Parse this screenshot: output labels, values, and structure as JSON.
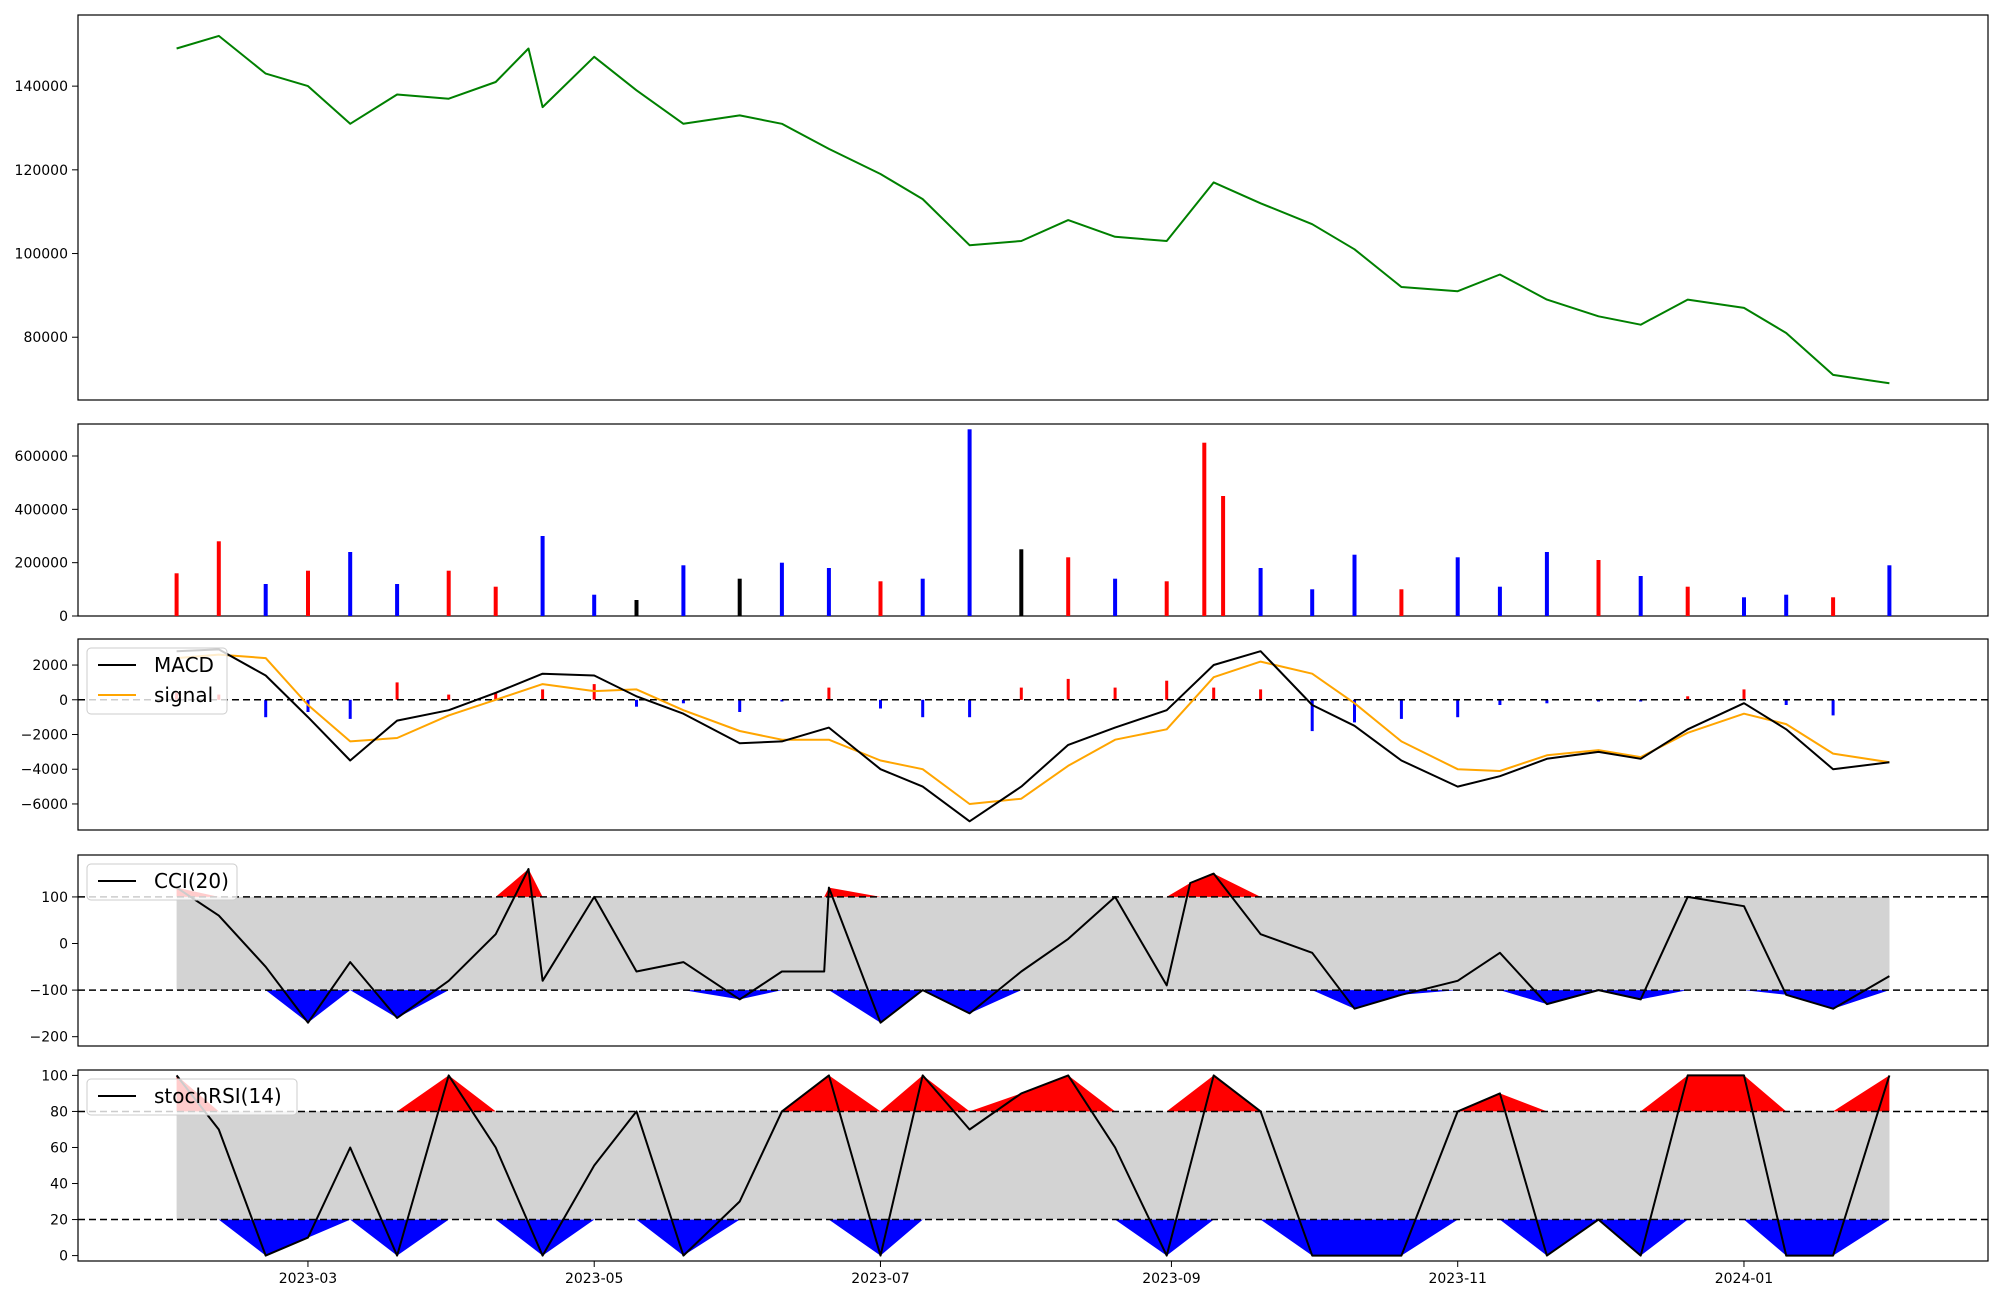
{
  "chart_data": [
    {
      "type": "line",
      "panel": "price",
      "color": "#008000",
      "ylim": [
        65000,
        157000
      ],
      "yticks": [
        80000,
        100000,
        120000,
        140000
      ],
      "x": [
        "2023-02-01",
        "2023-02-10",
        "2023-02-20",
        "2023-03-01",
        "2023-03-10",
        "2023-03-20",
        "2023-03-31",
        "2023-04-10",
        "2023-04-17",
        "2023-04-20",
        "2023-05-01",
        "2023-05-10",
        "2023-05-20",
        "2023-06-01",
        "2023-06-10",
        "2023-06-20",
        "2023-07-01",
        "2023-07-10",
        "2023-07-20",
        "2023-07-31",
        "2023-08-10",
        "2023-08-20",
        "2023-08-31",
        "2023-09-10",
        "2023-09-20",
        "2023-10-01",
        "2023-10-10",
        "2023-10-20",
        "2023-11-01",
        "2023-11-10",
        "2023-11-20",
        "2023-12-01",
        "2023-12-10",
        "2023-12-20",
        "2024-01-01",
        "2024-01-10",
        "2024-01-20",
        "2024-02-01"
      ],
      "y": [
        149000,
        152000,
        143000,
        140000,
        131000,
        138000,
        137000,
        141000,
        149000,
        135000,
        147000,
        139000,
        131000,
        133000,
        131000,
        125000,
        119000,
        113000,
        102000,
        103000,
        108000,
        104000,
        103000,
        117000,
        112000,
        107000,
        101000,
        92000,
        91000,
        95000,
        89000,
        85000,
        83000,
        89000,
        87000,
        81000,
        71000,
        69000
      ]
    },
    {
      "type": "bar",
      "panel": "volume",
      "colors": {
        "up": "#ff0000",
        "down": "#0000ff",
        "flat": "#000000"
      },
      "ylim": [
        0,
        720000
      ],
      "yticks": [
        0,
        200000,
        400000,
        600000
      ],
      "x": [
        "2023-02-01",
        "2023-02-10",
        "2023-02-20",
        "2023-03-01",
        "2023-03-10",
        "2023-03-20",
        "2023-03-31",
        "2023-04-10",
        "2023-04-20",
        "2023-05-01",
        "2023-05-10",
        "2023-05-20",
        "2023-06-01",
        "2023-06-10",
        "2023-06-20",
        "2023-07-01",
        "2023-07-10",
        "2023-07-20",
        "2023-07-31",
        "2023-08-10",
        "2023-08-20",
        "2023-08-31",
        "2023-09-08",
        "2023-09-12",
        "2023-09-20",
        "2023-10-01",
        "2023-10-10",
        "2023-10-20",
        "2023-11-01",
        "2023-11-10",
        "2023-11-20",
        "2023-12-01",
        "2023-12-10",
        "2023-12-20",
        "2024-01-01",
        "2024-01-10",
        "2024-01-20",
        "2024-02-01"
      ],
      "values": [
        160000,
        280000,
        120000,
        170000,
        240000,
        120000,
        170000,
        110000,
        300000,
        80000,
        60000,
        190000,
        140000,
        200000,
        180000,
        130000,
        140000,
        700000,
        250000,
        220000,
        140000,
        130000,
        650000,
        450000,
        180000,
        100000,
        230000,
        100000,
        220000,
        110000,
        240000,
        210000,
        150000,
        110000,
        70000,
        80000,
        70000,
        190000
      ],
      "directions": [
        "up",
        "up",
        "down",
        "up",
        "down",
        "down",
        "up",
        "up",
        "down",
        "down",
        "flat",
        "down",
        "flat",
        "down",
        "down",
        "up",
        "down",
        "down",
        "flat",
        "up",
        "down",
        "up",
        "up",
        "up",
        "down",
        "down",
        "down",
        "up",
        "down",
        "down",
        "down",
        "up",
        "down",
        "up",
        "down",
        "down",
        "up",
        "down"
      ]
    },
    {
      "type": "line",
      "panel": "macd",
      "ylim": [
        -7500,
        3500
      ],
      "yticks": [
        -6000,
        -4000,
        -2000,
        0,
        2000
      ],
      "hist_colors": {
        "positive": "#ff0000",
        "negative": "#0000ff"
      },
      "x": [
        "2023-02-01",
        "2023-02-10",
        "2023-02-20",
        "2023-03-01",
        "2023-03-10",
        "2023-03-20",
        "2023-03-31",
        "2023-04-10",
        "2023-04-20",
        "2023-05-01",
        "2023-05-10",
        "2023-05-20",
        "2023-06-01",
        "2023-06-10",
        "2023-06-20",
        "2023-07-01",
        "2023-07-10",
        "2023-07-20",
        "2023-07-31",
        "2023-08-10",
        "2023-08-20",
        "2023-08-31",
        "2023-09-10",
        "2023-09-20",
        "2023-10-01",
        "2023-10-10",
        "2023-10-20",
        "2023-11-01",
        "2023-11-10",
        "2023-11-20",
        "2023-12-01",
        "2023-12-10",
        "2023-12-20",
        "2024-01-01",
        "2024-01-10",
        "2024-01-20",
        "2024-02-01"
      ],
      "series": [
        {
          "name": "MACD",
          "color": "#000000",
          "values": [
            2800,
            2900,
            1400,
            -1000,
            -3500,
            -1200,
            -600,
            400,
            1500,
            1400,
            200,
            -800,
            -2500,
            -2400,
            -1600,
            -4000,
            -5000,
            -7000,
            -5000,
            -2600,
            -1600,
            -600,
            2000,
            2800,
            -300,
            -1500,
            -3500,
            -5000,
            -4400,
            -3400,
            -3000,
            -3400,
            -1700,
            -200,
            -1700,
            -4000,
            -3600
          ]
        },
        {
          "name": "signal",
          "color": "#ffa500",
          "values": [
            2400,
            2600,
            2400,
            -300,
            -2400,
            -2200,
            -900,
            0,
            900,
            500,
            600,
            -600,
            -1800,
            -2300,
            -2300,
            -3500,
            -4000,
            -6000,
            -5700,
            -3800,
            -2300,
            -1700,
            1300,
            2200,
            1500,
            -200,
            -2400,
            -4000,
            -4100,
            -3200,
            -2900,
            -3300,
            -1900,
            -800,
            -1400,
            -3100,
            -3600
          ]
        },
        {
          "name": "histogram",
          "values": [
            400,
            300,
            -1000,
            -700,
            -1100,
            1000,
            300,
            400,
            600,
            900,
            -400,
            -200,
            -700,
            -100,
            700,
            -500,
            -1000,
            -1000,
            700,
            1200,
            700,
            1100,
            700,
            600,
            -1800,
            -1300,
            -1100,
            -1000,
            -300,
            -200,
            -100,
            -100,
            200,
            600,
            -300,
            -900,
            0
          ]
        }
      ]
    },
    {
      "type": "area",
      "panel": "cci",
      "ylim": [
        -220,
        190
      ],
      "yticks": [
        -200,
        -100,
        0,
        100
      ],
      "bands": [
        -100,
        100
      ],
      "fill_colors": {
        "band": "#d3d3d3",
        "above": "#ff0000",
        "below": "#0000ff"
      },
      "x": [
        "2023-02-01",
        "2023-02-10",
        "2023-02-20",
        "2023-03-01",
        "2023-03-10",
        "2023-03-20",
        "2023-03-31",
        "2023-04-10",
        "2023-04-17",
        "2023-04-20",
        "2023-05-01",
        "2023-05-10",
        "2023-05-20",
        "2023-06-01",
        "2023-06-10",
        "2023-06-19",
        "2023-06-20",
        "2023-07-01",
        "2023-07-10",
        "2023-07-20",
        "2023-07-31",
        "2023-08-10",
        "2023-08-20",
        "2023-08-31",
        "2023-09-05",
        "2023-09-10",
        "2023-09-20",
        "2023-10-01",
        "2023-10-10",
        "2023-10-20",
        "2023-11-01",
        "2023-11-10",
        "2023-11-20",
        "2023-12-01",
        "2023-12-10",
        "2023-12-20",
        "2024-01-01",
        "2024-01-10",
        "2024-01-20",
        "2024-02-01"
      ],
      "series": [
        {
          "name": "CCI(20)",
          "color": "#000000",
          "values": [
            120,
            60,
            -50,
            -170,
            -40,
            -160,
            -80,
            20,
            160,
            -80,
            100,
            -60,
            -40,
            -120,
            -60,
            -60,
            120,
            -170,
            -100,
            -150,
            -60,
            10,
            100,
            -90,
            130,
            150,
            20,
            -20,
            -140,
            -110,
            -80,
            -20,
            -130,
            -100,
            -120,
            100,
            80,
            -110,
            -140,
            -70
          ]
        }
      ]
    },
    {
      "type": "area",
      "panel": "stochrsi",
      "ylim": [
        -3,
        103
      ],
      "yticks": [
        0,
        20,
        40,
        60,
        80,
        100
      ],
      "bands": [
        20,
        80
      ],
      "fill_colors": {
        "band": "#d3d3d3",
        "above": "#ff0000",
        "below": "#0000ff"
      },
      "x_ticks": [
        "2023-03",
        "2023-05",
        "2023-07",
        "2023-09",
        "2023-11",
        "2024-01"
      ],
      "x": [
        "2023-02-01",
        "2023-02-10",
        "2023-02-20",
        "2023-03-01",
        "2023-03-10",
        "2023-03-20",
        "2023-03-31",
        "2023-04-10",
        "2023-04-20",
        "2023-05-01",
        "2023-05-10",
        "2023-05-20",
        "2023-06-01",
        "2023-06-10",
        "2023-06-20",
        "2023-07-01",
        "2023-07-10",
        "2023-07-20",
        "2023-07-31",
        "2023-08-10",
        "2023-08-20",
        "2023-08-31",
        "2023-09-10",
        "2023-09-20",
        "2023-10-01",
        "2023-10-10",
        "2023-10-20",
        "2023-11-01",
        "2023-11-10",
        "2023-11-20",
        "2023-12-01",
        "2023-12-10",
        "2023-12-20",
        "2024-01-01",
        "2024-01-10",
        "2024-01-20",
        "2024-02-01"
      ],
      "series": [
        {
          "name": "stochRSI(14)",
          "color": "#000000",
          "values": [
            100,
            70,
            0,
            10,
            60,
            0,
            100,
            60,
            0,
            50,
            80,
            0,
            30,
            80,
            100,
            0,
            100,
            70,
            90,
            100,
            60,
            0,
            100,
            80,
            0,
            0,
            0,
            80,
            90,
            0,
            20,
            0,
            100,
            100,
            0,
            0,
            100
          ]
        }
      ]
    }
  ]
}
